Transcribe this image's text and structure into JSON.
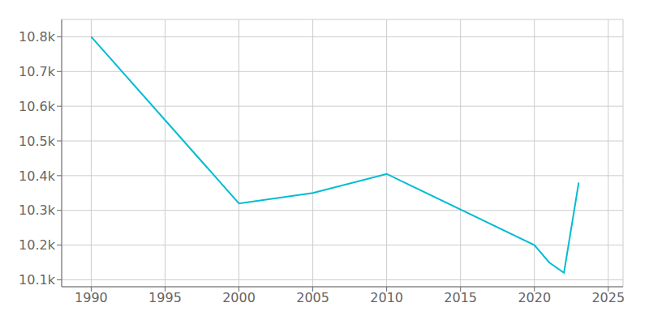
{
  "chart_data": {
    "type": "line",
    "x": [
      1990,
      2000,
      2005,
      2010,
      2020,
      2021,
      2022,
      2023
    ],
    "values": [
      10800,
      10320,
      10350,
      10405,
      10200,
      10150,
      10120,
      10380
    ],
    "color": "#00bcd4",
    "xlim": [
      1988,
      2026
    ],
    "ylim": [
      10080,
      10850
    ],
    "xticks": [
      1990,
      1995,
      2000,
      2005,
      2010,
      2015,
      2020,
      2025
    ],
    "yticks": [
      {
        "value": 10100,
        "label": "10.1k"
      },
      {
        "value": 10200,
        "label": "10.2k"
      },
      {
        "value": 10300,
        "label": "10.3k"
      },
      {
        "value": 10400,
        "label": "10.4k"
      },
      {
        "value": 10500,
        "label": "10.5k"
      },
      {
        "value": 10600,
        "label": "10.6k"
      },
      {
        "value": 10700,
        "label": "10.7k"
      },
      {
        "value": 10800,
        "label": "10.8k"
      }
    ],
    "grid": true
  }
}
